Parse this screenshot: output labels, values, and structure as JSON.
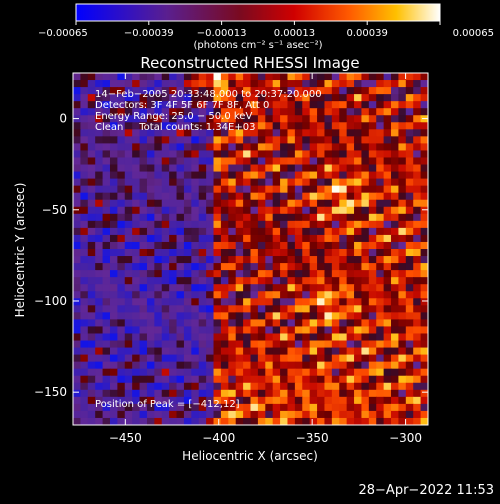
{
  "chart_data": {
    "type": "heatmap",
    "title": "Reconstructed RHESSI Image",
    "xlabel": "Heliocentric X (arcsec)",
    "ylabel": "Heliocentric Y (arcsec)",
    "xlim": [
      -478,
      -288
    ],
    "ylim": [
      -168,
      25
    ],
    "x_ticks": [
      -450,
      -400,
      -350,
      -300
    ],
    "x_tick_labels": [
      "−450",
      "−400",
      "−350",
      "−300"
    ],
    "y_ticks": [
      0,
      -50,
      -100,
      -150
    ],
    "y_tick_labels": [
      "0",
      "−50",
      "−100",
      "−150"
    ],
    "colorbar": {
      "range": [
        -0.00065,
        0.00065
      ],
      "ticks": [
        -0.00065,
        -0.00039,
        -0.00013,
        0.00013,
        0.00039,
        0.00065
      ],
      "tick_labels": [
        "−0.00065",
        "−0.00039",
        "−0.00013",
        "0.00013",
        "0.00039",
        "0.00065"
      ],
      "unit_label": "(photons cm⁻² s⁻¹ asec⁻²)"
    },
    "info_lines": [
      "14−Feb−2005 20:33:48.000 to 20:37:20.000",
      "Detectors: 3F 4F 5F 6F 7F 8F, Att 0",
      "Energy Range: 25.0 − 50.0 keV",
      "Clean     Total counts: 1.34E+03"
    ],
    "peak_label": "Position of Peak = [−412,12]",
    "peak": {
      "x": -412,
      "y": 12
    },
    "grid_size": [
      48,
      50
    ],
    "colormap": "blue-purple-red-orange-yellow-white"
  },
  "timestamp": "28−Apr−2022 11:53"
}
